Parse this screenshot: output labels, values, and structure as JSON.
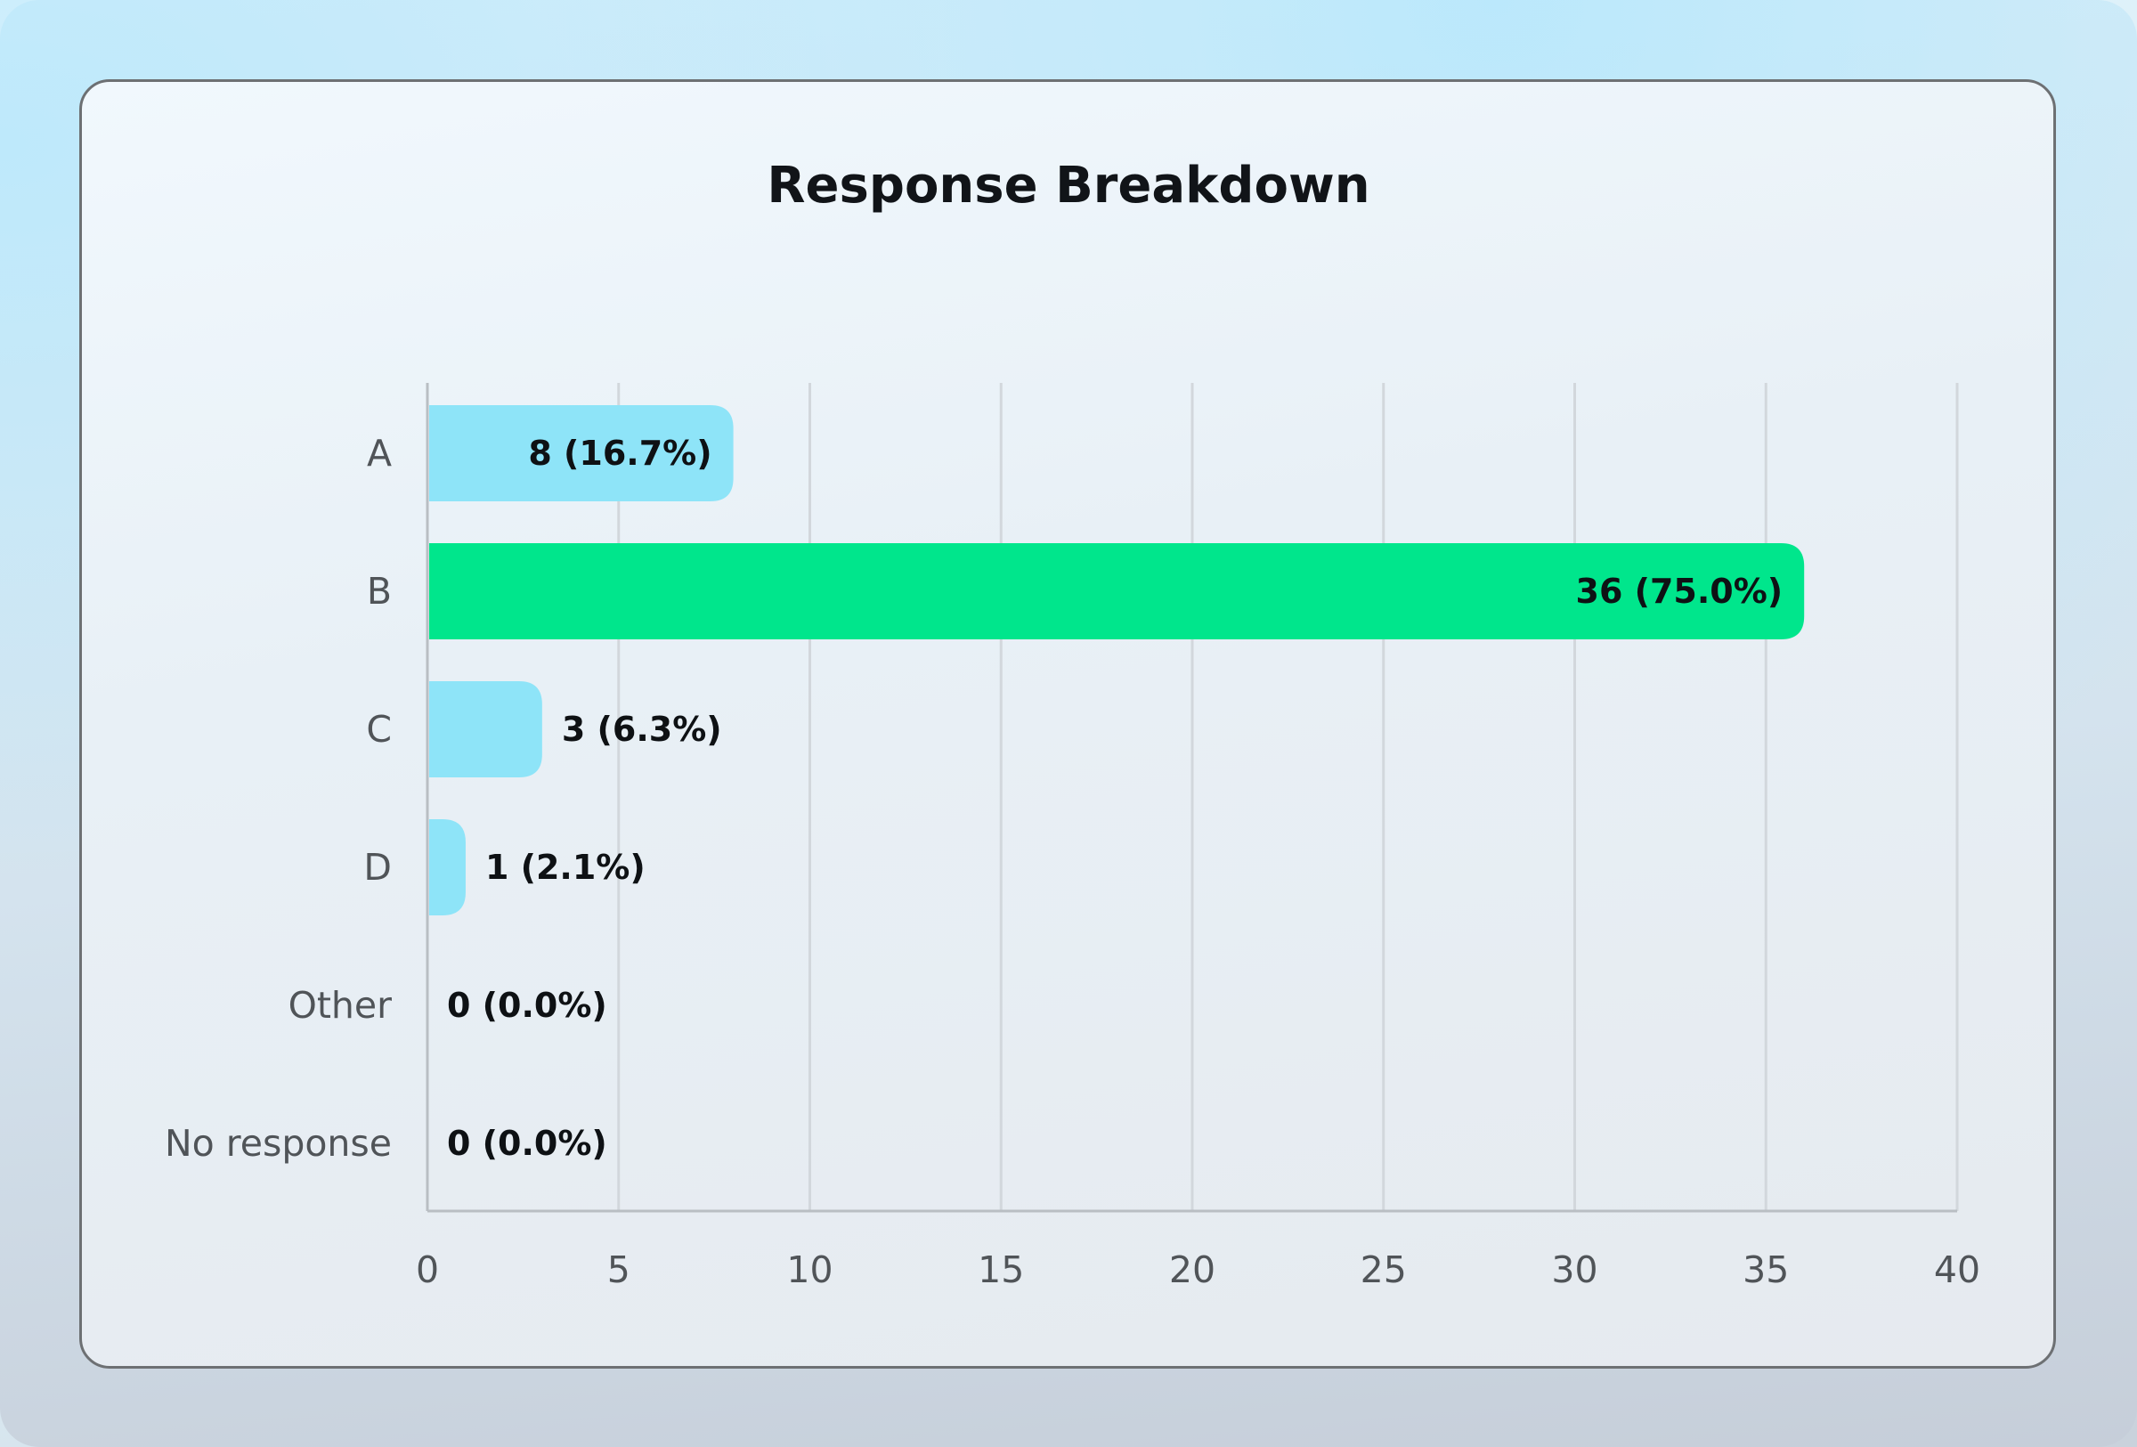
{
  "chart_data": {
    "type": "bar",
    "orientation": "horizontal",
    "title": "Response Breakdown",
    "xlabel": "",
    "ylabel": "",
    "categories": [
      "A",
      "B",
      "C",
      "D",
      "Other",
      "No response"
    ],
    "values": [
      8,
      36,
      3,
      1,
      0,
      0
    ],
    "data_labels": [
      "8 (16.7%)",
      "36 (75.0%)",
      "3 (6.3%)",
      "1 (2.1%)",
      "0 (0.0%)",
      "0 (0.0%)"
    ],
    "xlim": [
      0,
      40
    ],
    "x_ticks": [
      0,
      5,
      10,
      15,
      20,
      25,
      30,
      35,
      40
    ],
    "grid": "vertical",
    "legend": "none",
    "highlight_category": "B",
    "colors": {
      "bar": "#8ee4f8",
      "highlight": "#00e68c",
      "grid": "#d2d7dc",
      "axis": "#b9bec3"
    }
  }
}
